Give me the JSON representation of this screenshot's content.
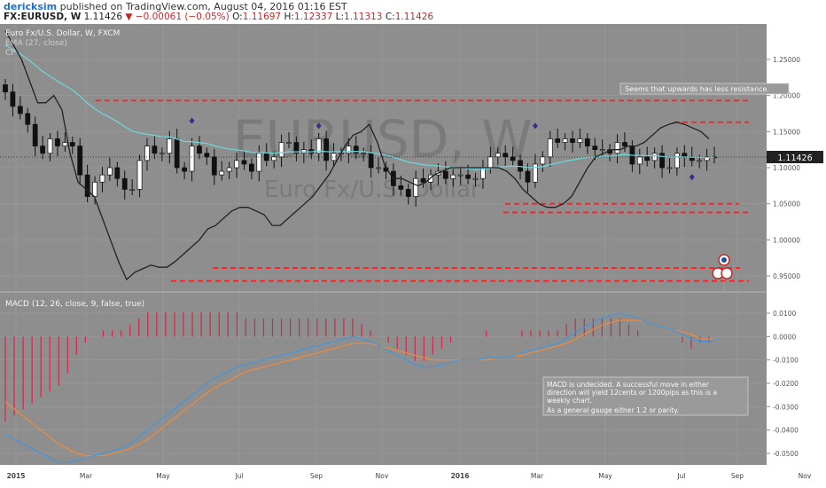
{
  "header": {
    "author": "dericksim",
    "published_text": "published on TradingView.com, August 04, 2016 01:16 EST",
    "symbol": "FX:EURUSD, W",
    "last": "1.11426",
    "change": "−0.00061 (−0.05%)",
    "o_label": "O:",
    "o": "1.11697",
    "h_label": "H:",
    "h": "1.12337",
    "l_label": "L:",
    "l": "1.11313",
    "c_label": "C:",
    "c": "1.11426"
  },
  "price_pane": {
    "title": "Euro Fx/U.S. Dollar, W, FXCM",
    "ema_label": "EMA (27, close)",
    "cp_label": "CP",
    "watermark_main": "EURUSD, W",
    "watermark_sub": "Euro Fx/U.S. Dollar",
    "last_price_label": "1.11426",
    "annotation": "Seems that upwards has less resistance."
  },
  "macd_pane": {
    "title": "MACD (12, 26, close, 9, false, true)",
    "annotation_line1": "MACD is undecided. A successful move in either",
    "annotation_line2": "direction will yield 12cents or 1200pips as this is a",
    "annotation_line3": "weekly chart.",
    "annotation_line4": "As a general gauge either 1.2 or parity."
  },
  "colors": {
    "background": "#8e8e8e",
    "ema": "#6fd3d8",
    "cp": "#222222",
    "macd_line": "#3f97e0",
    "signal_line": "#f08a3c",
    "histogram": "#d6244a",
    "support_resistance": "#ff2020",
    "diamond": "#3a2a8a"
  },
  "chart_data": [
    {
      "type": "candlestick",
      "title": "Euro Fx/U.S. Dollar, W, FXCM",
      "x_ticks": [
        "2015",
        "Mar",
        "May",
        "Jul",
        "Sep",
        "Nov",
        "2016",
        "Mar",
        "May",
        "Jul",
        "Sep",
        "Nov"
      ],
      "y_ticks": [
        "1.25000",
        "1.20000",
        "1.15000",
        "1.10000",
        "1.05000",
        "1.00000",
        "0.95000"
      ],
      "ylim": [
        0.925,
        1.29
      ],
      "series_close": [
        1.205,
        1.185,
        1.175,
        1.16,
        1.13,
        1.12,
        1.14,
        1.13,
        1.135,
        1.13,
        1.09,
        1.06,
        1.08,
        1.09,
        1.1,
        1.085,
        1.07,
        1.07,
        1.11,
        1.13,
        1.12,
        1.12,
        1.14,
        1.1,
        1.095,
        1.13,
        1.12,
        1.115,
        1.09,
        1.095,
        1.1,
        1.11,
        1.105,
        1.095,
        1.12,
        1.11,
        1.115,
        1.135,
        1.135,
        1.12,
        1.125,
        1.12,
        1.14,
        1.11,
        1.12,
        1.12,
        1.13,
        1.12,
        1.12,
        1.1,
        1.1,
        1.095,
        1.075,
        1.07,
        1.06,
        1.085,
        1.08,
        1.09,
        1.095,
        1.085,
        1.09,
        1.09,
        1.085,
        1.085,
        1.1,
        1.115,
        1.12,
        1.115,
        1.11,
        1.095,
        1.08,
        1.105,
        1.115,
        1.14,
        1.135,
        1.14,
        1.135,
        1.14,
        1.13,
        1.125,
        1.125,
        1.12,
        1.135,
        1.13,
        1.105,
        1.115,
        1.11,
        1.12,
        1.1,
        1.1,
        1.12,
        1.115,
        1.11,
        1.11,
        1.115,
        1.114
      ],
      "ema_period": 27,
      "resistance_levels": [
        1.193,
        1.163,
        1.15
      ],
      "support_levels": [
        1.05,
        1.038,
        0.961,
        0.943
      ],
      "last_price": 1.11426,
      "annotations": [
        "Seems that upwards has less resistance."
      ]
    },
    {
      "type": "line",
      "title": "MACD (12, 26, close, 9, false, true)",
      "y_ticks": [
        "0.0100",
        "0.0000",
        "-0.0100",
        "-0.0200",
        "-0.0300",
        "-0.0400",
        "-0.0500"
      ],
      "ylim": [
        -0.056,
        0.015
      ],
      "series": [
        {
          "name": "MACD",
          "values": [
            -0.042,
            -0.044,
            -0.046,
            -0.048,
            -0.05,
            -0.052,
            -0.054,
            -0.054,
            -0.053,
            -0.052,
            -0.051,
            -0.05,
            -0.049,
            -0.048,
            -0.046,
            -0.043,
            -0.04,
            -0.037,
            -0.034,
            -0.031,
            -0.028,
            -0.025,
            -0.022,
            -0.019,
            -0.017,
            -0.015,
            -0.013,
            -0.012,
            -0.011,
            -0.01,
            -0.009,
            -0.008,
            -0.007,
            -0.006,
            -0.005,
            -0.004,
            -0.003,
            -0.002,
            -0.001,
            0.0,
            -0.001,
            -0.002,
            -0.004,
            -0.006,
            -0.008,
            -0.01,
            -0.012,
            -0.013,
            -0.013,
            -0.012,
            -0.011,
            -0.01,
            -0.01,
            -0.01,
            -0.009,
            -0.009,
            -0.009,
            -0.008,
            -0.007,
            -0.006,
            -0.005,
            -0.004,
            -0.003,
            -0.001,
            0.002,
            0.004,
            0.006,
            0.008,
            0.009,
            0.01,
            0.009,
            0.008,
            0.006,
            0.005,
            0.004,
            0.003,
            0.001,
            -0.001,
            -0.002,
            -0.002,
            -0.001
          ]
        },
        {
          "name": "Signal",
          "values": [
            -0.028,
            -0.031,
            -0.034,
            -0.037,
            -0.04,
            -0.043,
            -0.046,
            -0.048,
            -0.05,
            -0.051,
            -0.051,
            -0.051,
            -0.05,
            -0.049,
            -0.048,
            -0.046,
            -0.044,
            -0.041,
            -0.038,
            -0.035,
            -0.032,
            -0.029,
            -0.026,
            -0.023,
            -0.021,
            -0.019,
            -0.017,
            -0.015,
            -0.014,
            -0.013,
            -0.012,
            -0.011,
            -0.01,
            -0.009,
            -0.008,
            -0.007,
            -0.006,
            -0.005,
            -0.004,
            -0.003,
            -0.003,
            -0.003,
            -0.004,
            -0.005,
            -0.006,
            -0.007,
            -0.008,
            -0.009,
            -0.01,
            -0.01,
            -0.01,
            -0.01,
            -0.01,
            -0.01,
            -0.01,
            -0.009,
            -0.009,
            -0.008,
            -0.008,
            -0.007,
            -0.006,
            -0.005,
            -0.004,
            -0.003,
            -0.001,
            0.001,
            0.003,
            0.005,
            0.006,
            0.007,
            0.007,
            0.007,
            0.006,
            0.005,
            0.004,
            0.003,
            0.002,
            0.001,
            -0.001,
            -0.001,
            -0.001
          ]
        }
      ],
      "annotations": [
        "MACD is undecided. A successful move in either direction will yield 12cents or 1200pips as this is a weekly chart.",
        "As a general gauge either 1.2 or parity."
      ]
    }
  ]
}
